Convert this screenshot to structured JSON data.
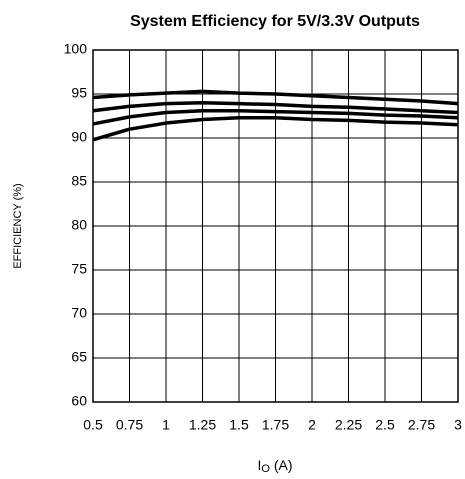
{
  "chart_data": {
    "type": "line",
    "title": "System Efficiency for 5V/3.3V Outputs",
    "ylabel": "EFFICIENCY (%)",
    "xlabel": [
      "I",
      "O",
      "(A)"
    ],
    "x": [
      0.5,
      0.75,
      1,
      1.25,
      1.5,
      1.75,
      2,
      2.25,
      2.5,
      2.75,
      3
    ],
    "series": [
      {
        "color": "#000000",
        "values": [
          94.6,
          94.9,
          95.1,
          95.3,
          95.1,
          95.0,
          94.8,
          94.6,
          94.4,
          94.2,
          93.9
        ]
      },
      {
        "color": "#000000",
        "values": [
          93.1,
          93.6,
          93.9,
          94.0,
          93.9,
          93.8,
          93.6,
          93.5,
          93.3,
          93.1,
          92.9
        ]
      },
      {
        "color": "#000000",
        "values": [
          91.6,
          92.4,
          92.9,
          93.1,
          93.1,
          93.0,
          92.9,
          92.8,
          92.6,
          92.5,
          92.3
        ]
      },
      {
        "color": "#000000",
        "values": [
          89.8,
          91.0,
          91.7,
          92.1,
          92.3,
          92.3,
          92.1,
          92.0,
          91.8,
          91.7,
          91.5
        ]
      }
    ],
    "xlim": [
      0.5,
      3
    ],
    "xticks": [
      0.5,
      0.75,
      1,
      1.25,
      1.5,
      1.75,
      2,
      2.25,
      2.5,
      2.75,
      3
    ],
    "ylim": [
      60,
      100
    ],
    "yticks": [
      60,
      65,
      70,
      75,
      80,
      85,
      90,
      95,
      100
    ],
    "grid": true
  }
}
